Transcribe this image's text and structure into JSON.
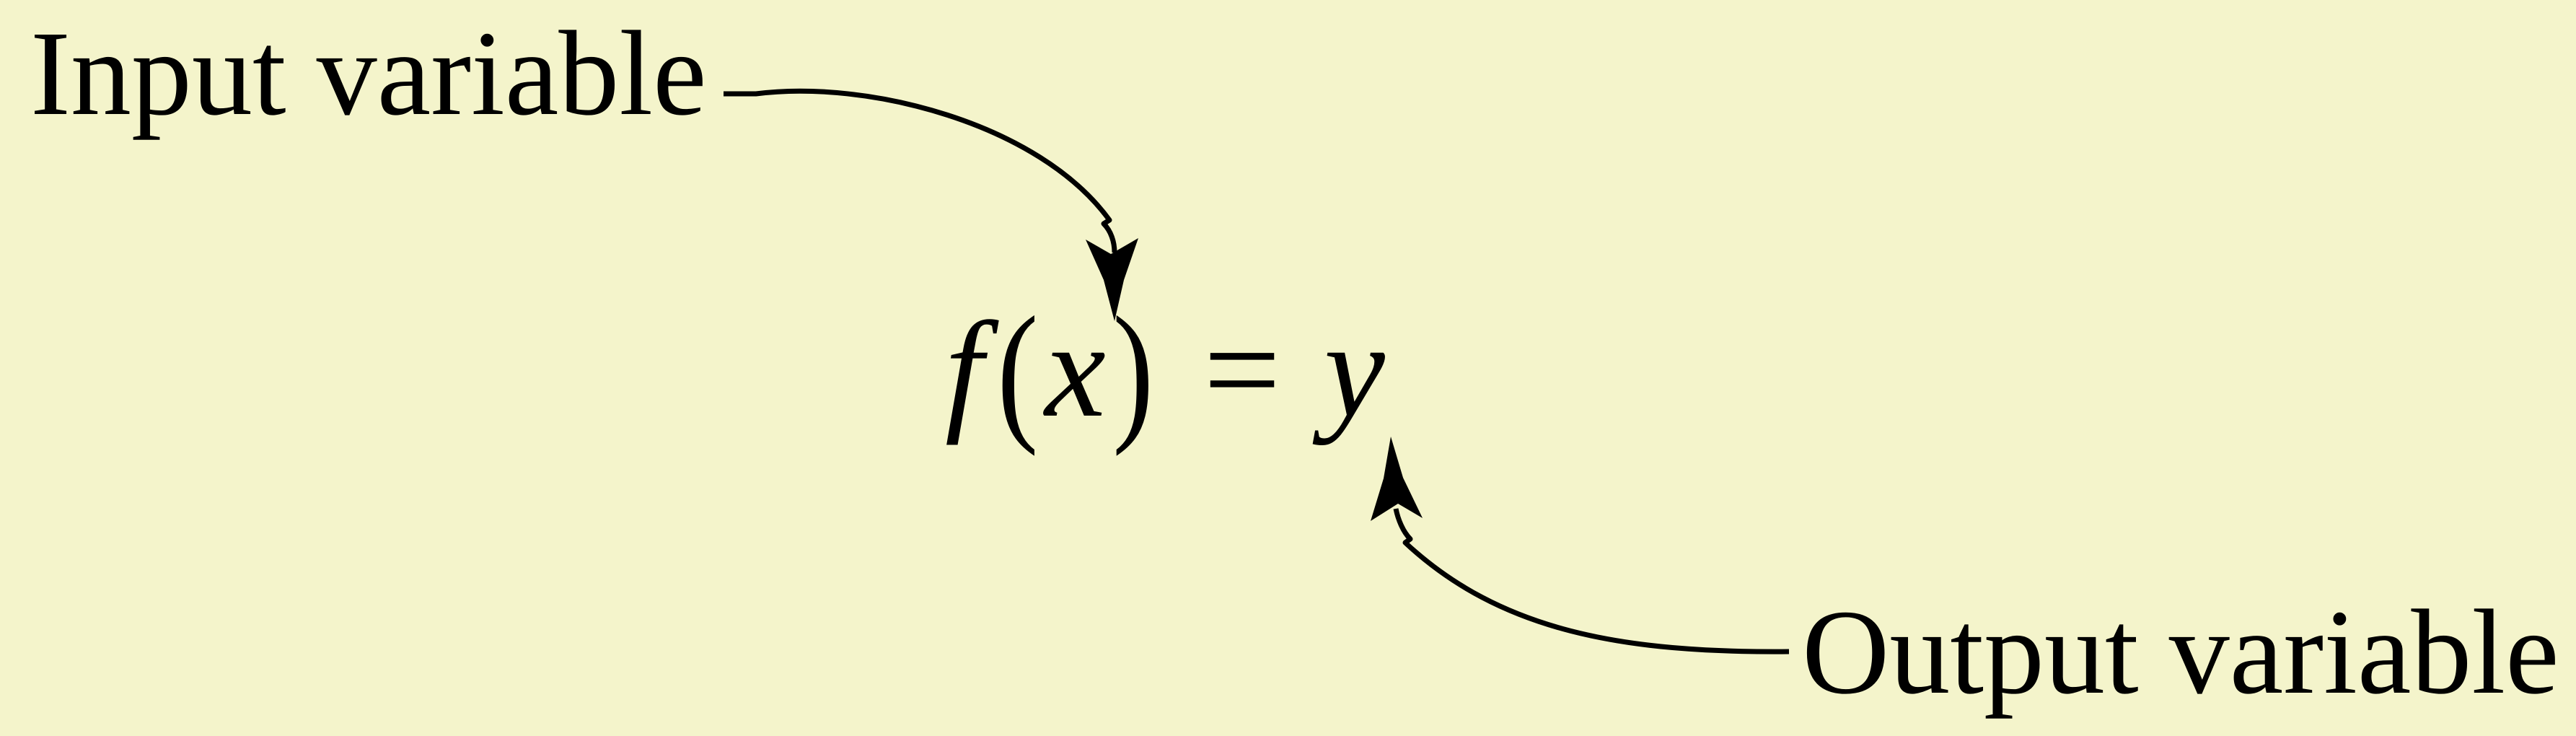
{
  "diagram": {
    "input_label": "Input variable",
    "output_label": "Output variable",
    "equation": {
      "function_name": "f",
      "open_paren": "(",
      "argument": "x",
      "close_paren": ")",
      "equals": "=",
      "result": "y"
    }
  },
  "colors": {
    "background": "#f4f4cb",
    "ink": "#000000"
  }
}
